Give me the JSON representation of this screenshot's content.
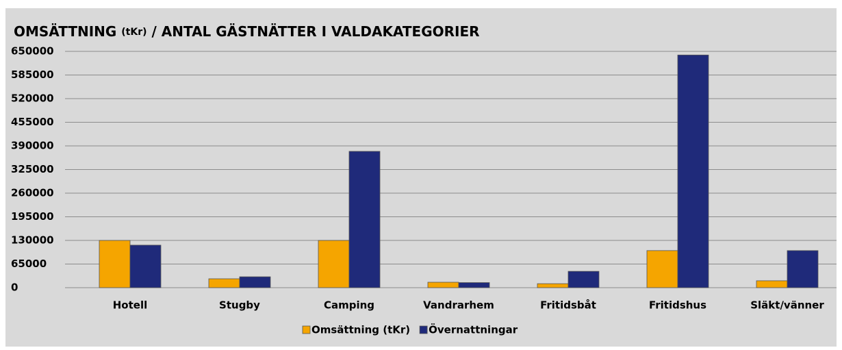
{
  "chart_data": {
    "type": "bar",
    "title": [
      "OMSÄTTNING",
      "(tKr)",
      "/ ANTAL GÄSTNÄTTER I VALDAKATEGORIER"
    ],
    "categories": [
      "Hotell",
      "Stugby",
      "Camping",
      "Vandrarhem",
      "Fritidsbåt",
      "Fritidshus",
      "Släkt/vänner"
    ],
    "series": [
      {
        "name": "Omsättning (tKr)",
        "color": "#f5a500",
        "values": [
          130000,
          24500,
          130000,
          15000,
          11000,
          102000,
          19000
        ]
      },
      {
        "name": "Övernattningar",
        "color": "#1f2a7a",
        "values": [
          117000,
          30000,
          375000,
          14000,
          45000,
          640000,
          102000
        ]
      }
    ],
    "ylim": [
      0,
      650000
    ],
    "yticks": [
      0,
      65000,
      130000,
      195000,
      260000,
      325000,
      390000,
      455000,
      520000,
      585000,
      650000
    ],
    "grid": true
  }
}
